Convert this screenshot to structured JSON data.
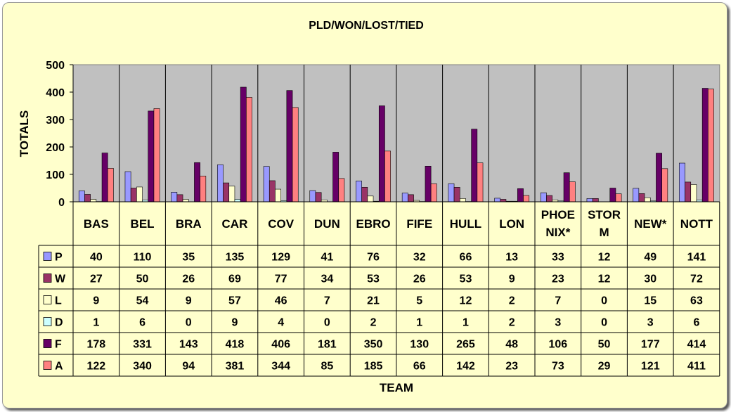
{
  "chart_data": {
    "type": "bar",
    "title": "PLD/WON/LOST/TIED",
    "xlabel": "TEAM",
    "ylabel": "TOTALS",
    "ylim": [
      0,
      500
    ],
    "yticks": [
      "0",
      "100",
      "200",
      "300",
      "400",
      "500"
    ],
    "grid": false,
    "legend": "data-table",
    "categories": [
      "BAS",
      "BEL",
      "BRA",
      "CAR",
      "COV",
      "DUN",
      "EBRO",
      "FIFE",
      "HULL",
      "LON",
      "PHOENIX*",
      "STORM",
      "NEW*",
      "NOTT"
    ],
    "category_lines": [
      [
        "BAS"
      ],
      [
        "BEL"
      ],
      [
        "BRA"
      ],
      [
        "CAR"
      ],
      [
        "COV"
      ],
      [
        "DUN"
      ],
      [
        "EBRO"
      ],
      [
        "FIFE"
      ],
      [
        "HULL"
      ],
      [
        "LON"
      ],
      [
        "PHOE",
        "NIX*"
      ],
      [
        "STOR",
        "M"
      ],
      [
        "NEW*"
      ],
      [
        "NOTT"
      ]
    ],
    "series": [
      {
        "name": "P",
        "color": "#9999ff",
        "values": [
          40,
          110,
          35,
          135,
          129,
          41,
          76,
          32,
          66,
          13,
          33,
          12,
          49,
          141
        ]
      },
      {
        "name": "W",
        "color": "#993366",
        "values": [
          27,
          50,
          26,
          69,
          77,
          34,
          53,
          26,
          53,
          9,
          23,
          12,
          30,
          72
        ]
      },
      {
        "name": "L",
        "color": "#ffffcc",
        "values": [
          9,
          54,
          9,
          57,
          46,
          7,
          21,
          5,
          12,
          2,
          7,
          0,
          15,
          63
        ]
      },
      {
        "name": "D",
        "color": "#ccffff",
        "values": [
          1,
          6,
          0,
          9,
          4,
          0,
          2,
          1,
          1,
          2,
          3,
          0,
          3,
          6
        ]
      },
      {
        "name": "F",
        "color": "#660066",
        "values": [
          178,
          331,
          143,
          418,
          406,
          181,
          350,
          130,
          265,
          48,
          106,
          50,
          177,
          414
        ]
      },
      {
        "name": "A",
        "color": "#ff8080",
        "values": [
          122,
          340,
          94,
          381,
          344,
          85,
          185,
          66,
          142,
          23,
          73,
          29,
          121,
          411
        ]
      }
    ]
  },
  "colors": {
    "plot_background": "#c0c0c0",
    "chart_background": "#ffffcc"
  }
}
